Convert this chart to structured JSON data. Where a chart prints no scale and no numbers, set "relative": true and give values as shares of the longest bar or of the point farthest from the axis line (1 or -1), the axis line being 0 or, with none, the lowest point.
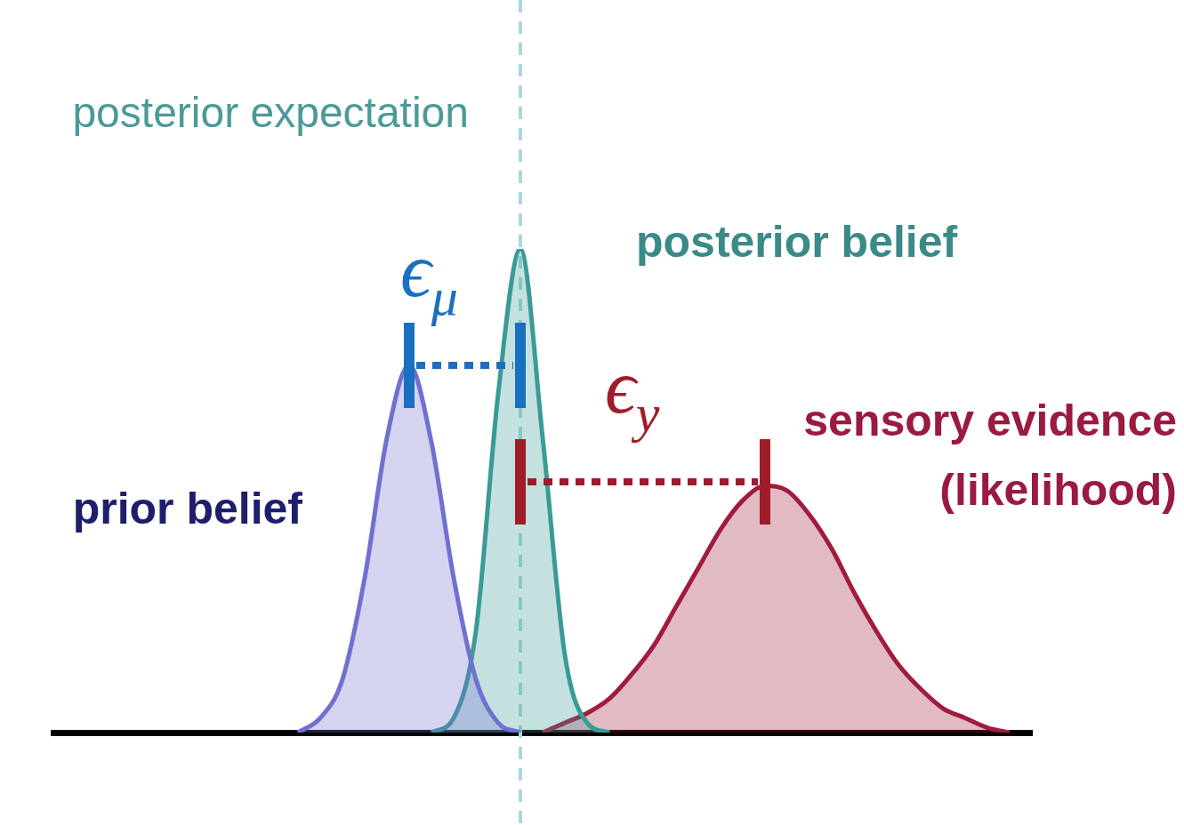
{
  "chart_data": {
    "type": "area",
    "relative": true,
    "tick_labels": false,
    "grid": false,
    "legend": false,
    "marker": "none",
    "categories": [
      null,
      null,
      null,
      null,
      null,
      null,
      null,
      null,
      null,
      null,
      null,
      null,
      null,
      null,
      null,
      null,
      null,
      null,
      null,
      null,
      null,
      null,
      null,
      null,
      null,
      null,
      null,
      null,
      null,
      null,
      null,
      null,
      null,
      null,
      null,
      null,
      null,
      null,
      null,
      null,
      null,
      null,
      null,
      null,
      null
    ],
    "series": [
      {
        "name": "prior belief",
        "color": "#7070d0",
        "values": [
          null,
          null,
          null,
          null,
          null,
          null,
          null,
          null,
          null,
          null,
          null,
          0,
          0.03,
          0.11,
          0.32,
          0.61,
          0.76,
          0.6,
          0.32,
          0.11,
          0.02,
          0,
          null,
          null,
          null,
          null,
          null,
          null,
          null,
          null,
          null,
          null,
          null,
          null,
          null,
          null,
          null,
          null,
          null,
          null,
          null,
          null,
          null,
          null,
          null
        ]
      },
      {
        "name": "posterior belief",
        "color": "#3a9a96",
        "values": [
          null,
          null,
          null,
          null,
          null,
          null,
          null,
          null,
          null,
          null,
          null,
          null,
          null,
          null,
          null,
          null,
          null,
          0,
          0.03,
          0.21,
          0.7,
          1,
          0.61,
          0.16,
          0.02,
          0,
          null,
          null,
          null,
          null,
          null,
          null,
          null,
          null,
          null,
          null,
          null,
          null,
          null,
          null,
          null,
          null,
          null,
          null,
          null
        ]
      },
      {
        "name": "sensory evidence (likelihood)",
        "color": "#a01c3c",
        "values": [
          null,
          null,
          null,
          null,
          null,
          null,
          null,
          null,
          null,
          null,
          null,
          null,
          null,
          null,
          null,
          null,
          null,
          null,
          null,
          null,
          null,
          null,
          0,
          0.02,
          0.04,
          0.07,
          0.12,
          0.18,
          0.26,
          0.34,
          0.42,
          0.48,
          0.51,
          0.5,
          0.45,
          0.38,
          0.29,
          0.21,
          0.14,
          0.09,
          0.05,
          0.03,
          0.01,
          0,
          null
        ]
      }
    ],
    "annotations": [
      "posterior expectation",
      "ϵ$_{μ}$",
      "ϵ$_{y}$"
    ]
  }
}
